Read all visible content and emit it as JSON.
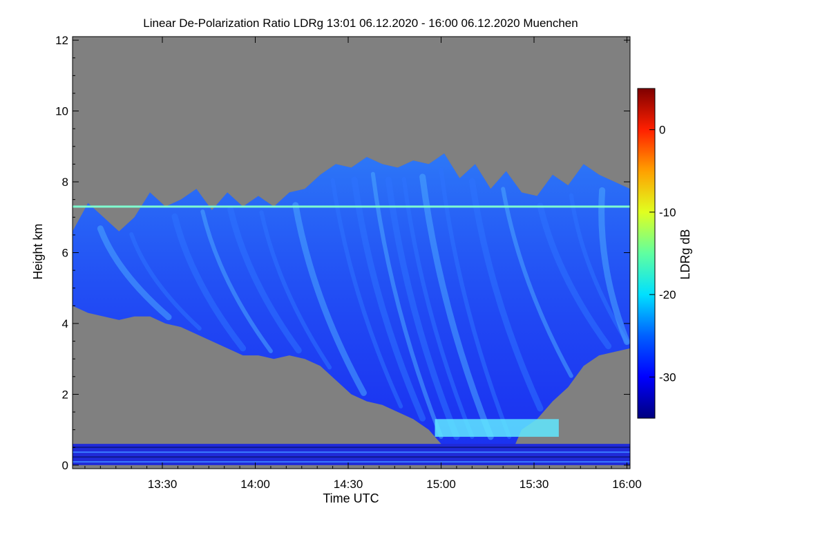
{
  "chart_data": {
    "type": "heatmap",
    "title": "Linear De-Polarization Ratio LDRg   13:01 06.12.2020 - 16:00 06.12.2020 Muenchen",
    "xlabel": "Time UTC",
    "ylabel": "Height km",
    "colorbar_label": "LDRg dB",
    "x_ticks": [
      "13:30",
      "14:00",
      "14:30",
      "15:00",
      "15:30",
      "16:00"
    ],
    "x_tick_minutes": [
      90,
      120,
      150,
      180,
      210,
      240
    ],
    "xlim_minutes": [
      61,
      241
    ],
    "y_ticks": [
      0,
      2,
      4,
      6,
      8,
      10,
      12
    ],
    "ylim": [
      -0.1,
      12.1
    ],
    "colorbar_ticks": [
      0,
      -10,
      -20,
      -30
    ],
    "colorbar_range": [
      -35,
      5
    ],
    "colormap": [
      "#00007f",
      "#0000ff",
      "#007fff",
      "#00ffff",
      "#7fff7f",
      "#ffff00",
      "#ff7f00",
      "#ff0000",
      "#7f0000"
    ],
    "background_color": "#808080",
    "cloud_top_km": [
      [
        61,
        6.6
      ],
      [
        66,
        7.4
      ],
      [
        71,
        7.0
      ],
      [
        76,
        6.6
      ],
      [
        81,
        7.0
      ],
      [
        86,
        7.7
      ],
      [
        91,
        7.3
      ],
      [
        96,
        7.5
      ],
      [
        101,
        7.8
      ],
      [
        106,
        7.2
      ],
      [
        111,
        7.7
      ],
      [
        116,
        7.3
      ],
      [
        121,
        7.6
      ],
      [
        126,
        7.3
      ],
      [
        131,
        7.7
      ],
      [
        136,
        7.8
      ],
      [
        141,
        8.2
      ],
      [
        146,
        8.5
      ],
      [
        151,
        8.4
      ],
      [
        156,
        8.7
      ],
      [
        161,
        8.5
      ],
      [
        166,
        8.4
      ],
      [
        171,
        8.6
      ],
      [
        176,
        8.5
      ],
      [
        181,
        8.8
      ],
      [
        186,
        8.1
      ],
      [
        191,
        8.5
      ],
      [
        196,
        7.8
      ],
      [
        201,
        8.3
      ],
      [
        206,
        7.7
      ],
      [
        211,
        7.6
      ],
      [
        216,
        8.2
      ],
      [
        221,
        7.9
      ],
      [
        226,
        8.5
      ],
      [
        231,
        8.2
      ],
      [
        236,
        8.0
      ],
      [
        241,
        7.8
      ]
    ],
    "cloud_base_km": [
      [
        61,
        4.5
      ],
      [
        66,
        4.3
      ],
      [
        71,
        4.2
      ],
      [
        76,
        4.1
      ],
      [
        81,
        4.2
      ],
      [
        86,
        4.2
      ],
      [
        91,
        4.0
      ],
      [
        96,
        3.9
      ],
      [
        101,
        3.7
      ],
      [
        106,
        3.5
      ],
      [
        111,
        3.3
      ],
      [
        116,
        3.1
      ],
      [
        121,
        3.1
      ],
      [
        126,
        3.0
      ],
      [
        131,
        3.1
      ],
      [
        136,
        3.0
      ],
      [
        141,
        2.8
      ],
      [
        146,
        2.4
      ],
      [
        151,
        2.0
      ],
      [
        156,
        1.8
      ],
      [
        161,
        1.7
      ],
      [
        166,
        1.5
      ],
      [
        171,
        1.3
      ],
      [
        176,
        1.0
      ],
      [
        181,
        0.5
      ],
      [
        186,
        0.2
      ],
      [
        191,
        0.0
      ],
      [
        196,
        0.0
      ],
      [
        201,
        0.0
      ],
      [
        206,
        1.0
      ],
      [
        211,
        1.3
      ],
      [
        216,
        1.8
      ],
      [
        221,
        2.2
      ],
      [
        226,
        2.8
      ],
      [
        231,
        3.1
      ],
      [
        236,
        3.2
      ],
      [
        241,
        3.3
      ]
    ],
    "fall_streaks_start_minutes": [
      70,
      80,
      94,
      103,
      112,
      122,
      133,
      145,
      152,
      158,
      163,
      168,
      174,
      180,
      190,
      200,
      212,
      222,
      232
    ],
    "layer_7_3km_ldr_db": -20,
    "near_surface_layer_km": [
      0.0,
      0.6
    ],
    "low_cloud_layer_km": [
      0.8,
      1.3
    ],
    "low_cloud_minutes": [
      178,
      218
    ]
  }
}
